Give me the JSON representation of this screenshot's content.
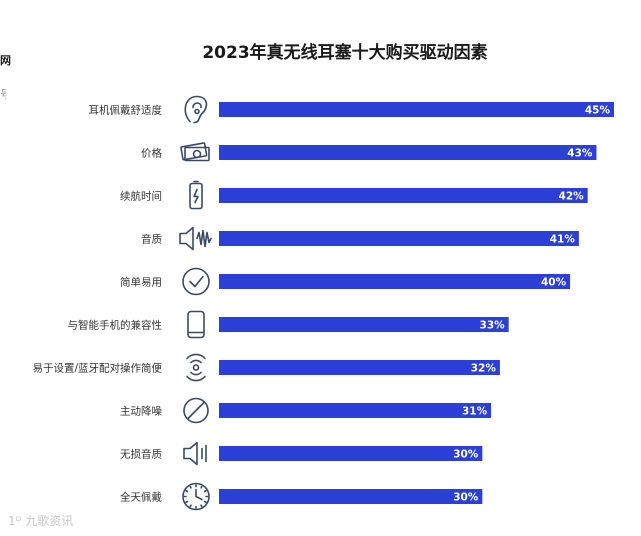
{
  "left_fragments": {
    "line1": "网",
    "line2": "号"
  },
  "watermark": "1ᴰ 九歌资讯",
  "colors": {
    "bar": "#2c3fd6",
    "value_text": "#ffffff",
    "icon_stroke": "#3a4a66"
  },
  "chart_data": {
    "type": "bar",
    "orientation": "horizontal",
    "title": "2023年真无线耳塞十大购买驱动因素",
    "categories": [
      "耳机佩戴舒适度",
      "价格",
      "续航时间",
      "音质",
      "简单易用",
      "与智能手机的兼容性",
      "易于设置/蓝牙配对操作简便",
      "主动降噪",
      "无损音质",
      "全天佩戴"
    ],
    "icons": [
      "ear-icon",
      "money-icon",
      "battery-icon",
      "speaker-wave-icon",
      "checkmark-circle-icon",
      "smartphone-icon",
      "wireless-signal-icon",
      "no-sign-icon",
      "speaker-icon",
      "clock-icon"
    ],
    "values": [
      45,
      43,
      42,
      41,
      40,
      33,
      32,
      31,
      30,
      30
    ],
    "value_labels": [
      "45%",
      "43%",
      "42%",
      "41%",
      "40%",
      "33%",
      "32%",
      "31%",
      "30%",
      "30%"
    ],
    "xlim": [
      0,
      45
    ],
    "grid": false,
    "legend": "none"
  }
}
